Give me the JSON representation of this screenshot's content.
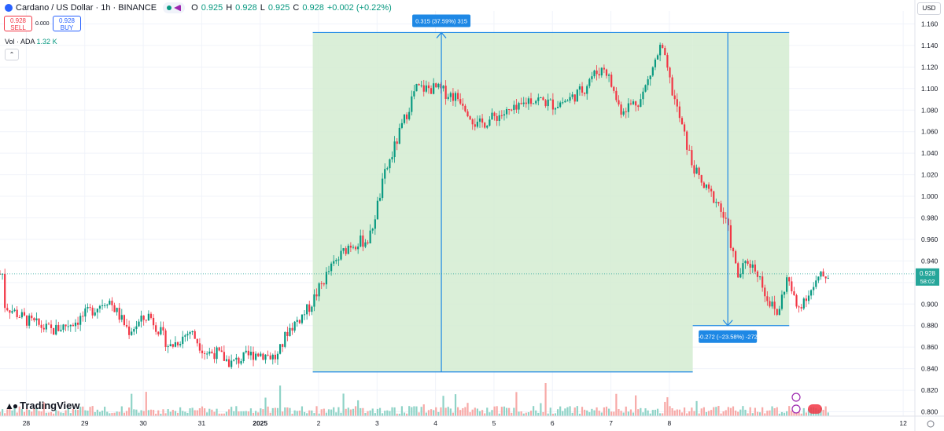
{
  "header": {
    "symbol_title": "Cardano / US Dollar · 1h · BINANCE",
    "ohlc": {
      "o_label": "O",
      "o": "0.925",
      "h_label": "H",
      "h": "0.928",
      "l_label": "L",
      "l": "0.925",
      "c_label": "C",
      "c": "0.928",
      "change": "+0.002 (+0.22%)"
    }
  },
  "trade": {
    "sell_price": "0.928",
    "sell_label": "SELL",
    "spread": "0.000",
    "buy_price": "0.928",
    "buy_label": "BUY"
  },
  "volume_legend": {
    "label": "Vol · ADA",
    "value": "1.32 K"
  },
  "currency_button": "USD",
  "brand": "TradingView",
  "colors": {
    "up": "#089981",
    "down": "#f23645",
    "accent": "#2962ff",
    "up_volume": "#8fd3c7",
    "down_volume": "#f7a9a7",
    "range_fill": "#d3ecd1",
    "price_tag": "#26a69a",
    "measure": "#1e88e5"
  },
  "price_tag": {
    "price": "0.928",
    "countdown": "58:02"
  },
  "measure": {
    "up_label": "0.315 (37.59%) 315",
    "down_label": "-0.272 (−23.58%) -272"
  },
  "chart_data": {
    "type": "candlestick",
    "interval": "1h",
    "y_axis_ticks": [
      "1.160",
      "1.140",
      "1.120",
      "1.100",
      "1.080",
      "1.060",
      "1.040",
      "1.020",
      "1.000",
      "0.980",
      "0.960",
      "0.940",
      "0.920",
      "0.900",
      "0.880",
      "0.860",
      "0.840",
      "0.820",
      "0.800"
    ],
    "y_tick_values": [
      1.16,
      1.14,
      1.12,
      1.1,
      1.08,
      1.06,
      1.04,
      1.02,
      1.0,
      0.98,
      0.96,
      0.94,
      0.92,
      0.9,
      0.88,
      0.86,
      0.84,
      0.82,
      0.8
    ],
    "ylim": [
      0.796,
      1.172
    ],
    "x_axis_ticks": [
      "28",
      "29",
      "30",
      "31",
      "2025",
      "2",
      "3",
      "4",
      "5",
      "6",
      "7",
      "8",
      "12"
    ],
    "x_tick_days": [
      0,
      1,
      2,
      3,
      4,
      5,
      6,
      7,
      8,
      9,
      10,
      11,
      15
    ],
    "xlim_days": [
      -0.45,
      15.2
    ],
    "day_label_bold": "2025",
    "price_path_days": [
      -0.45,
      0,
      0.5,
      1,
      1.6,
      2,
      2.4,
      2.8,
      3.2,
      3.5,
      3.7,
      4,
      4.5,
      4.9,
      5.1,
      5.5,
      5.9,
      6.3,
      6.7,
      7.0,
      7.3,
      7.6,
      8,
      8.5,
      8.8,
      9.2,
      9.6,
      9.8,
      10,
      10.3,
      10.6,
      10.9,
      11.0,
      11.3,
      11.6,
      12.0,
      12.4,
      12.6,
      13.0,
      13.2,
      13.5,
      13.7
    ],
    "price_path_values": [
      0.9,
      0.885,
      0.875,
      0.885,
      0.905,
      0.875,
      0.89,
      0.86,
      0.875,
      0.855,
      0.855,
      0.845,
      0.855,
      0.85,
      0.875,
      0.895,
      0.93,
      0.955,
      0.96,
      1.02,
      1.06,
      1.1,
      1.1,
      1.09,
      1.065,
      1.075,
      1.08,
      1.09,
      1.09,
      1.085,
      1.09,
      1.1,
      1.11,
      1.12,
      1.08,
      1.09,
      1.14,
      1.1,
      1.03,
      1.01,
      0.995,
      0.97
    ],
    "tail_path_days": [
      13.7,
      14.0,
      14.3,
      14.6,
      14.9,
      15.2,
      15.5,
      15.8,
      16.0,
      16.3,
      16.5,
      16.8
    ],
    "tail_path_values": [
      0.97,
      0.925,
      0.94,
      0.93,
      0.905,
      0.89,
      0.925,
      0.895,
      0.905,
      0.915,
      0.925,
      0.928
    ],
    "measurements": [
      {
        "direction": "up",
        "from": 0.837,
        "to": 1.152,
        "change": 0.315,
        "percent": 37.59
      },
      {
        "direction": "down",
        "from": 1.152,
        "to": 0.88,
        "change": -0.272,
        "percent": -23.58
      }
    ],
    "last_price": 0.928
  }
}
